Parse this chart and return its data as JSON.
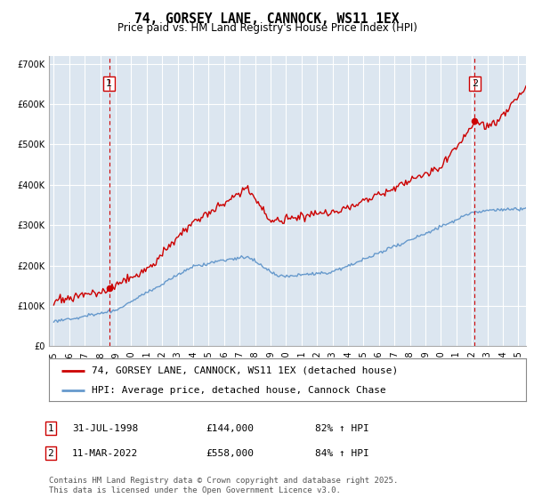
{
  "title": "74, GORSEY LANE, CANNOCK, WS11 1EX",
  "subtitle": "Price paid vs. HM Land Registry's House Price Index (HPI)",
  "ylim": [
    0,
    720000
  ],
  "xlim_start": 1994.7,
  "xlim_end": 2025.5,
  "yticks": [
    0,
    100000,
    200000,
    300000,
    400000,
    500000,
    600000,
    700000
  ],
  "ytick_labels": [
    "£0",
    "£100K",
    "£200K",
    "£300K",
    "£400K",
    "£500K",
    "£600K",
    "£700K"
  ],
  "xticks": [
    1995,
    1996,
    1997,
    1998,
    1999,
    2000,
    2001,
    2002,
    2003,
    2004,
    2005,
    2006,
    2007,
    2008,
    2009,
    2010,
    2011,
    2012,
    2013,
    2014,
    2015,
    2016,
    2017,
    2018,
    2019,
    2020,
    2021,
    2022,
    2023,
    2024,
    2025
  ],
  "red_line_color": "#cc0000",
  "blue_line_color": "#6699cc",
  "plot_bg_color": "#dce6f0",
  "grid_color": "#ffffff",
  "purchase1_year": 1998.58,
  "purchase1_price": 144000,
  "purchase1_label": "1",
  "purchase1_date": "31-JUL-1998",
  "purchase1_price_str": "£144,000",
  "purchase1_hpi": "82% ↑ HPI",
  "purchase2_year": 2022.19,
  "purchase2_price": 558000,
  "purchase2_label": "2",
  "purchase2_date": "11-MAR-2022",
  "purchase2_price_str": "£558,000",
  "purchase2_hpi": "84% ↑ HPI",
  "legend_red": "74, GORSEY LANE, CANNOCK, WS11 1EX (detached house)",
  "legend_blue": "HPI: Average price, detached house, Cannock Chase",
  "footer": "Contains HM Land Registry data © Crown copyright and database right 2025.\nThis data is licensed under the Open Government Licence v3.0.",
  "title_fontsize": 10.5,
  "subtitle_fontsize": 8.5,
  "tick_fontsize": 7,
  "legend_fontsize": 8,
  "annotation_fontsize": 8,
  "footer_fontsize": 6.5
}
